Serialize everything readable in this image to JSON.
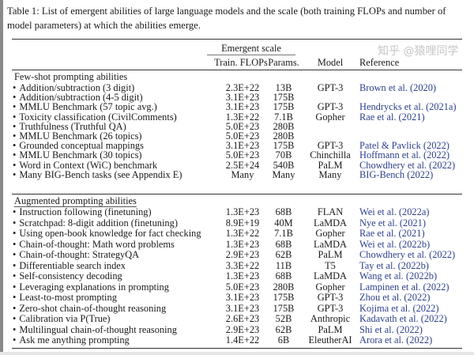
{
  "caption": "Table 1: List of emergent abilities of large language models and the scale (both training FLOPs and number of model parameters) at which the abilities emerge.",
  "header": {
    "group": "Emergent scale",
    "flops": "Train. FLOPs",
    "params": "Params.",
    "model": "Model",
    "reference": "Reference"
  },
  "sections": [
    {
      "title": "Few-shot prompting abilities",
      "rows": [
        {
          "task": "Addition/subtraction (3 digit)",
          "flops": "2.3E+22",
          "params": "13B",
          "model": "GPT-3",
          "ref": "Brown et al. (2020)"
        },
        {
          "task": "Addition/subtraction (4-5 digit)",
          "flops": "3.1E+23",
          "params": "175B",
          "model": "",
          "ref": ""
        },
        {
          "task": "MMLU Benchmark (57 topic avg.)",
          "flops": "3.1E+23",
          "params": "175B",
          "model": "GPT-3",
          "ref": "Hendrycks et al. (2021a)"
        },
        {
          "task": "Toxicity classification (CivilComments)",
          "flops": "1.3E+22",
          "params": "7.1B",
          "model": "Gopher",
          "ref": "Rae et al. (2021)"
        },
        {
          "task": "Truthfulness (Truthful QA)",
          "flops": "5.0E+23",
          "params": "280B",
          "model": "",
          "ref": ""
        },
        {
          "task": "MMLU Benchmark (26 topics)",
          "flops": "5.0E+23",
          "params": "280B",
          "model": "",
          "ref": ""
        },
        {
          "task": "Grounded conceptual mappings",
          "flops": "3.1E+23",
          "params": "175B",
          "model": "GPT-3",
          "ref": "Patel & Pavlick (2022)"
        },
        {
          "task": "MMLU Benchmark (30 topics)",
          "flops": "5.0E+23",
          "params": "70B",
          "model": "Chinchilla",
          "ref": "Hoffmann et al. (2022)"
        },
        {
          "task": "Word in Context (WiC) benchmark",
          "flops": "2.5E+24",
          "params": "540B",
          "model": "PaLM",
          "ref": "Chowdhery et al. (2022)"
        },
        {
          "task": "Many BIG-Bench tasks (see Appendix E)",
          "flops": "Many",
          "params": "Many",
          "model": "Many",
          "ref": "BIG-Bench (2022)"
        }
      ]
    },
    {
      "title": "Augmented prompting abilities",
      "rows": [
        {
          "task": "Instruction following (finetuning)",
          "flops": "1.3E+23",
          "params": "68B",
          "model": "FLAN",
          "ref": "Wei et al. (2022a)"
        },
        {
          "task": "Scratchpad: 8-digit addition (finetuning)",
          "flops": "8.9E+19",
          "params": "40M",
          "model": "LaMDA",
          "ref": "Nye et al. (2021)"
        },
        {
          "task": "Using open-book knowledge for fact checking",
          "flops": "1.3E+22",
          "params": "7.1B",
          "model": "Gopher",
          "ref": "Rae et al. (2021)"
        },
        {
          "task": "Chain-of-thought: Math word problems",
          "flops": "1.3E+23",
          "params": "68B",
          "model": "LaMDA",
          "ref": "Wei et al. (2022b)"
        },
        {
          "task": "Chain-of-thought: StrategyQA",
          "flops": "2.9E+23",
          "params": "62B",
          "model": "PaLM",
          "ref": "Chowdhery et al. (2022)"
        },
        {
          "task": "Differentiable search index",
          "flops": "3.3E+22",
          "params": "11B",
          "model": "T5",
          "ref": "Tay et al. (2022b)"
        },
        {
          "task": "Self-consistency decoding",
          "flops": "1.3E+23",
          "params": "68B",
          "model": "LaMDA",
          "ref": "Wang et al. (2022b)"
        },
        {
          "task": "Leveraging explanations in prompting",
          "flops": "5.0E+23",
          "params": "280B",
          "model": "Gopher",
          "ref": "Lampinen et al. (2022)"
        },
        {
          "task": "Least-to-most prompting",
          "flops": "3.1E+23",
          "params": "175B",
          "model": "GPT-3",
          "ref": "Zhou et al. (2022)"
        },
        {
          "task": "Zero-shot chain-of-thought reasoning",
          "flops": "3.1E+23",
          "params": "175B",
          "model": "GPT-3",
          "ref": "Kojima et al. (2022)"
        },
        {
          "task": "Calibration via P(True)",
          "flops": "2.6E+23",
          "params": "52B",
          "model": "Anthropic",
          "ref": "Kadavath et al. (2022)"
        },
        {
          "task": "Multilingual chain-of-thought reasoning",
          "flops": "2.9E+23",
          "params": "62B",
          "model": "PaLM",
          "ref": "Shi et al. (2022)"
        },
        {
          "task": "Ask me anything prompting",
          "flops": "1.4E+22",
          "params": "6B",
          "model": "EleutherAI",
          "ref": "Arora et al. (2022)"
        }
      ]
    }
  ],
  "bullet": "•",
  "watermark": "知乎 @猿哩同学"
}
